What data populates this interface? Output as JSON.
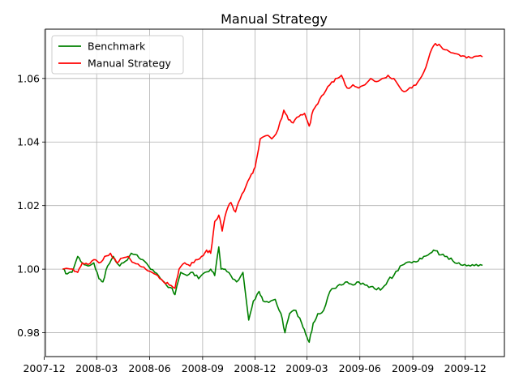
{
  "chart_data": {
    "type": "line",
    "title": "Manual Strategy",
    "xlabel": "",
    "ylabel": "",
    "x_start": "2008-01-02",
    "x_end": "2009-12-31",
    "xlim": [
      "2007-12-03",
      "2010-02-07"
    ],
    "ylim": [
      0.9725,
      1.0755
    ],
    "x_ticks": [
      {
        "date": "2007-12-01",
        "label": "2007-12"
      },
      {
        "date": "2008-03-01",
        "label": "2008-03"
      },
      {
        "date": "2008-06-01",
        "label": "2008-06"
      },
      {
        "date": "2008-09-01",
        "label": "2008-09"
      },
      {
        "date": "2008-12-01",
        "label": "2008-12"
      },
      {
        "date": "2009-03-01",
        "label": "2009-03"
      },
      {
        "date": "2009-06-01",
        "label": "2009-06"
      },
      {
        "date": "2009-09-01",
        "label": "2009-09"
      },
      {
        "date": "2009-12-01",
        "label": "2009-12"
      }
    ],
    "y_ticks": [
      {
        "value": 0.98,
        "label": "0.98"
      },
      {
        "value": 1.0,
        "label": "1.00"
      },
      {
        "value": 1.02,
        "label": "1.02"
      },
      {
        "value": 1.04,
        "label": "1.04"
      },
      {
        "value": 1.06,
        "label": "1.06"
      }
    ],
    "grid": true,
    "legend_position": "top-left",
    "series": [
      {
        "name": "Benchmark",
        "color": "#008000",
        "points": [
          [
            "2008-01-02",
            1.0
          ],
          [
            "2008-01-10",
            0.9985
          ],
          [
            "2008-01-18",
            0.999
          ],
          [
            "2008-01-28",
            1.004
          ],
          [
            "2008-02-05",
            1.002
          ],
          [
            "2008-02-15",
            1.001
          ],
          [
            "2008-02-25",
            1.002
          ],
          [
            "2008-03-05",
            0.997
          ],
          [
            "2008-03-12",
            0.996
          ],
          [
            "2008-03-20",
            1.001
          ],
          [
            "2008-03-30",
            1.004
          ],
          [
            "2008-04-10",
            1.001
          ],
          [
            "2008-04-20",
            1.0025
          ],
          [
            "2008-04-30",
            1.005
          ],
          [
            "2008-05-10",
            1.0045
          ],
          [
            "2008-05-20",
            1.003
          ],
          [
            "2008-05-30",
            1.001
          ],
          [
            "2008-06-10",
            0.999
          ],
          [
            "2008-06-20",
            0.997
          ],
          [
            "2008-06-30",
            0.995
          ],
          [
            "2008-07-10",
            0.994
          ],
          [
            "2008-07-15",
            0.992
          ],
          [
            "2008-07-25",
            0.999
          ],
          [
            "2008-08-05",
            0.998
          ],
          [
            "2008-08-15",
            0.999
          ],
          [
            "2008-08-25",
            0.997
          ],
          [
            "2008-09-05",
            0.999
          ],
          [
            "2008-09-15",
            1.0
          ],
          [
            "2008-09-22",
            0.998
          ],
          [
            "2008-09-29",
            1.007
          ],
          [
            "2008-10-03",
            1.0
          ],
          [
            "2008-10-10",
            1.0
          ],
          [
            "2008-10-20",
            0.998
          ],
          [
            "2008-10-30",
            0.996
          ],
          [
            "2008-11-10",
            0.999
          ],
          [
            "2008-11-20",
            0.984
          ],
          [
            "2008-11-28",
            0.99
          ],
          [
            "2008-12-08",
            0.993
          ],
          [
            "2008-12-15",
            0.99
          ],
          [
            "2008-12-25",
            0.9895
          ],
          [
            "2009-01-05",
            0.9905
          ],
          [
            "2009-01-15",
            0.986
          ],
          [
            "2009-01-22",
            0.98
          ],
          [
            "2009-01-30",
            0.986
          ],
          [
            "2009-02-10",
            0.987
          ],
          [
            "2009-02-20",
            0.983
          ],
          [
            "2009-02-27",
            0.9795
          ],
          [
            "2009-03-05",
            0.977
          ],
          [
            "2009-03-12",
            0.983
          ],
          [
            "2009-03-20",
            0.986
          ],
          [
            "2009-03-30",
            0.987
          ],
          [
            "2009-04-10",
            0.993
          ],
          [
            "2009-04-20",
            0.994
          ],
          [
            "2009-04-30",
            0.995
          ],
          [
            "2009-05-10",
            0.996
          ],
          [
            "2009-05-20",
            0.995
          ],
          [
            "2009-05-30",
            0.996
          ],
          [
            "2009-06-10",
            0.995
          ],
          [
            "2009-06-20",
            0.9945
          ],
          [
            "2009-06-30",
            0.9935
          ],
          [
            "2009-07-10",
            0.994
          ],
          [
            "2009-07-20",
            0.9965
          ],
          [
            "2009-07-30",
            0.998
          ],
          [
            "2009-08-10",
            1.001
          ],
          [
            "2009-08-20",
            1.002
          ],
          [
            "2009-08-30",
            1.002
          ],
          [
            "2009-09-10",
            1.0025
          ],
          [
            "2009-09-20",
            1.004
          ],
          [
            "2009-10-01",
            1.005
          ],
          [
            "2009-10-10",
            1.0058
          ],
          [
            "2009-10-20",
            1.0045
          ],
          [
            "2009-10-30",
            1.004
          ],
          [
            "2009-11-10",
            1.0025
          ],
          [
            "2009-11-20",
            1.002
          ],
          [
            "2009-11-30",
            1.0015
          ],
          [
            "2009-12-10",
            1.001
          ],
          [
            "2009-12-20",
            1.0015
          ],
          [
            "2009-12-31",
            1.0012
          ]
        ]
      },
      {
        "name": "Manual Strategy",
        "color": "#ff0000",
        "points": [
          [
            "2008-01-02",
            1.0
          ],
          [
            "2008-01-20",
            1.0
          ],
          [
            "2008-01-28",
            0.999
          ],
          [
            "2008-02-05",
            1.002
          ],
          [
            "2008-02-15",
            1.0015
          ],
          [
            "2008-02-25",
            1.003
          ],
          [
            "2008-03-05",
            1.002
          ],
          [
            "2008-03-15",
            1.004
          ],
          [
            "2008-03-25",
            1.005
          ],
          [
            "2008-04-05",
            1.002
          ],
          [
            "2008-04-15",
            1.0035
          ],
          [
            "2008-04-25",
            1.004
          ],
          [
            "2008-05-05",
            1.002
          ],
          [
            "2008-05-15",
            1.001
          ],
          [
            "2008-05-25",
            1.0
          ],
          [
            "2008-06-05",
            0.999
          ],
          [
            "2008-06-15",
            0.998
          ],
          [
            "2008-06-25",
            0.996
          ],
          [
            "2008-07-05",
            0.995
          ],
          [
            "2008-07-15",
            0.994
          ],
          [
            "2008-07-22",
            1.0
          ],
          [
            "2008-08-01",
            1.002
          ],
          [
            "2008-08-10",
            1.001
          ],
          [
            "2008-08-20",
            1.003
          ],
          [
            "2008-08-30",
            1.004
          ],
          [
            "2008-09-08",
            1.006
          ],
          [
            "2008-09-15",
            1.005
          ],
          [
            "2008-09-22",
            1.015
          ],
          [
            "2008-09-29",
            1.017
          ],
          [
            "2008-10-05",
            1.012
          ],
          [
            "2008-10-12",
            1.018
          ],
          [
            "2008-10-20",
            1.021
          ],
          [
            "2008-10-28",
            1.018
          ],
          [
            "2008-11-05",
            1.022
          ],
          [
            "2008-11-15",
            1.026
          ],
          [
            "2008-11-25",
            1.03
          ],
          [
            "2008-12-01",
            1.032
          ],
          [
            "2008-12-10",
            1.041
          ],
          [
            "2008-12-20",
            1.042
          ],
          [
            "2008-12-30",
            1.041
          ],
          [
            "2009-01-10",
            1.044
          ],
          [
            "2009-01-20",
            1.05
          ],
          [
            "2009-01-28",
            1.047
          ],
          [
            "2009-02-05",
            1.046
          ],
          [
            "2009-02-15",
            1.048
          ],
          [
            "2009-02-25",
            1.049
          ],
          [
            "2009-03-05",
            1.045
          ],
          [
            "2009-03-12",
            1.05
          ],
          [
            "2009-03-20",
            1.052
          ],
          [
            "2009-03-30",
            1.055
          ],
          [
            "2009-04-10",
            1.058
          ],
          [
            "2009-04-20",
            1.06
          ],
          [
            "2009-04-30",
            1.061
          ],
          [
            "2009-05-10",
            1.057
          ],
          [
            "2009-05-20",
            1.058
          ],
          [
            "2009-05-30",
            1.057
          ],
          [
            "2009-06-10",
            1.058
          ],
          [
            "2009-06-20",
            1.06
          ],
          [
            "2009-06-30",
            1.059
          ],
          [
            "2009-07-10",
            1.06
          ],
          [
            "2009-07-20",
            1.061
          ],
          [
            "2009-07-30",
            1.06
          ],
          [
            "2009-08-10",
            1.057
          ],
          [
            "2009-08-20",
            1.056
          ],
          [
            "2009-08-30",
            1.057
          ],
          [
            "2009-09-10",
            1.059
          ],
          [
            "2009-09-20",
            1.062
          ],
          [
            "2009-10-01",
            1.068
          ],
          [
            "2009-10-10",
            1.071
          ],
          [
            "2009-10-20",
            1.07
          ],
          [
            "2009-10-30",
            1.069
          ],
          [
            "2009-11-10",
            1.068
          ],
          [
            "2009-11-20",
            1.0675
          ],
          [
            "2009-11-30",
            1.067
          ],
          [
            "2009-12-10",
            1.0665
          ],
          [
            "2009-12-20",
            1.067
          ],
          [
            "2009-12-31",
            1.0668
          ]
        ]
      }
    ]
  }
}
